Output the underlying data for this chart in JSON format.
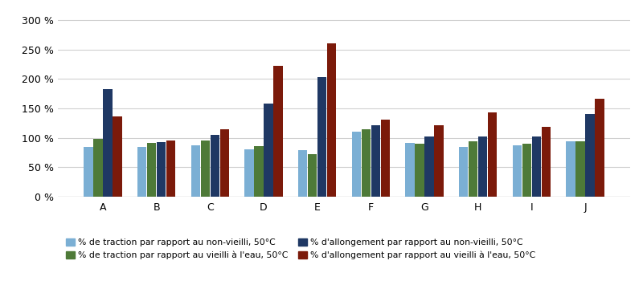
{
  "categories": [
    "A",
    "B",
    "C",
    "D",
    "E",
    "F",
    "G",
    "H",
    "I",
    "J"
  ],
  "series": {
    "traction_non_vieilli": [
      84,
      85,
      88,
      80,
      79,
      110,
      91,
      84,
      87,
      94
    ],
    "traction_vieilli_eau": [
      98,
      92,
      95,
      86,
      73,
      115,
      90,
      94,
      90,
      94
    ],
    "allongement_non_vieilli": [
      183,
      93,
      105,
      158,
      204,
      121,
      103,
      103,
      103,
      140
    ],
    "allongement_vieilli_eau": [
      136,
      95,
      114,
      222,
      260,
      131,
      121,
      143,
      119,
      167
    ]
  },
  "colors": {
    "traction_non_vieilli": "#7BAFD4",
    "traction_vieilli_eau": "#4E7A38",
    "allongement_non_vieilli": "#1F3864",
    "allongement_vieilli_eau": "#7B1A0A"
  },
  "legend_labels": [
    "% de traction par rapport au non-vieilli, 50°C",
    "% de traction par rapport au vieilli à l'eau, 50°C",
    "% d'allongement par rapport au non-vieilli, 50°C",
    "% d'allongement par rapport au vieilli à l'eau, 50°C"
  ],
  "series_order": [
    "traction_non_vieilli",
    "traction_vieilli_eau",
    "allongement_non_vieilli",
    "allongement_vieilli_eau"
  ],
  "ylim": [
    0,
    320
  ],
  "yticks": [
    0,
    50,
    100,
    150,
    200,
    250,
    300
  ],
  "background_color": "#ffffff",
  "grid_color": "#d0d0d0",
  "bar_width": 0.17,
  "bar_gap": 0.01
}
